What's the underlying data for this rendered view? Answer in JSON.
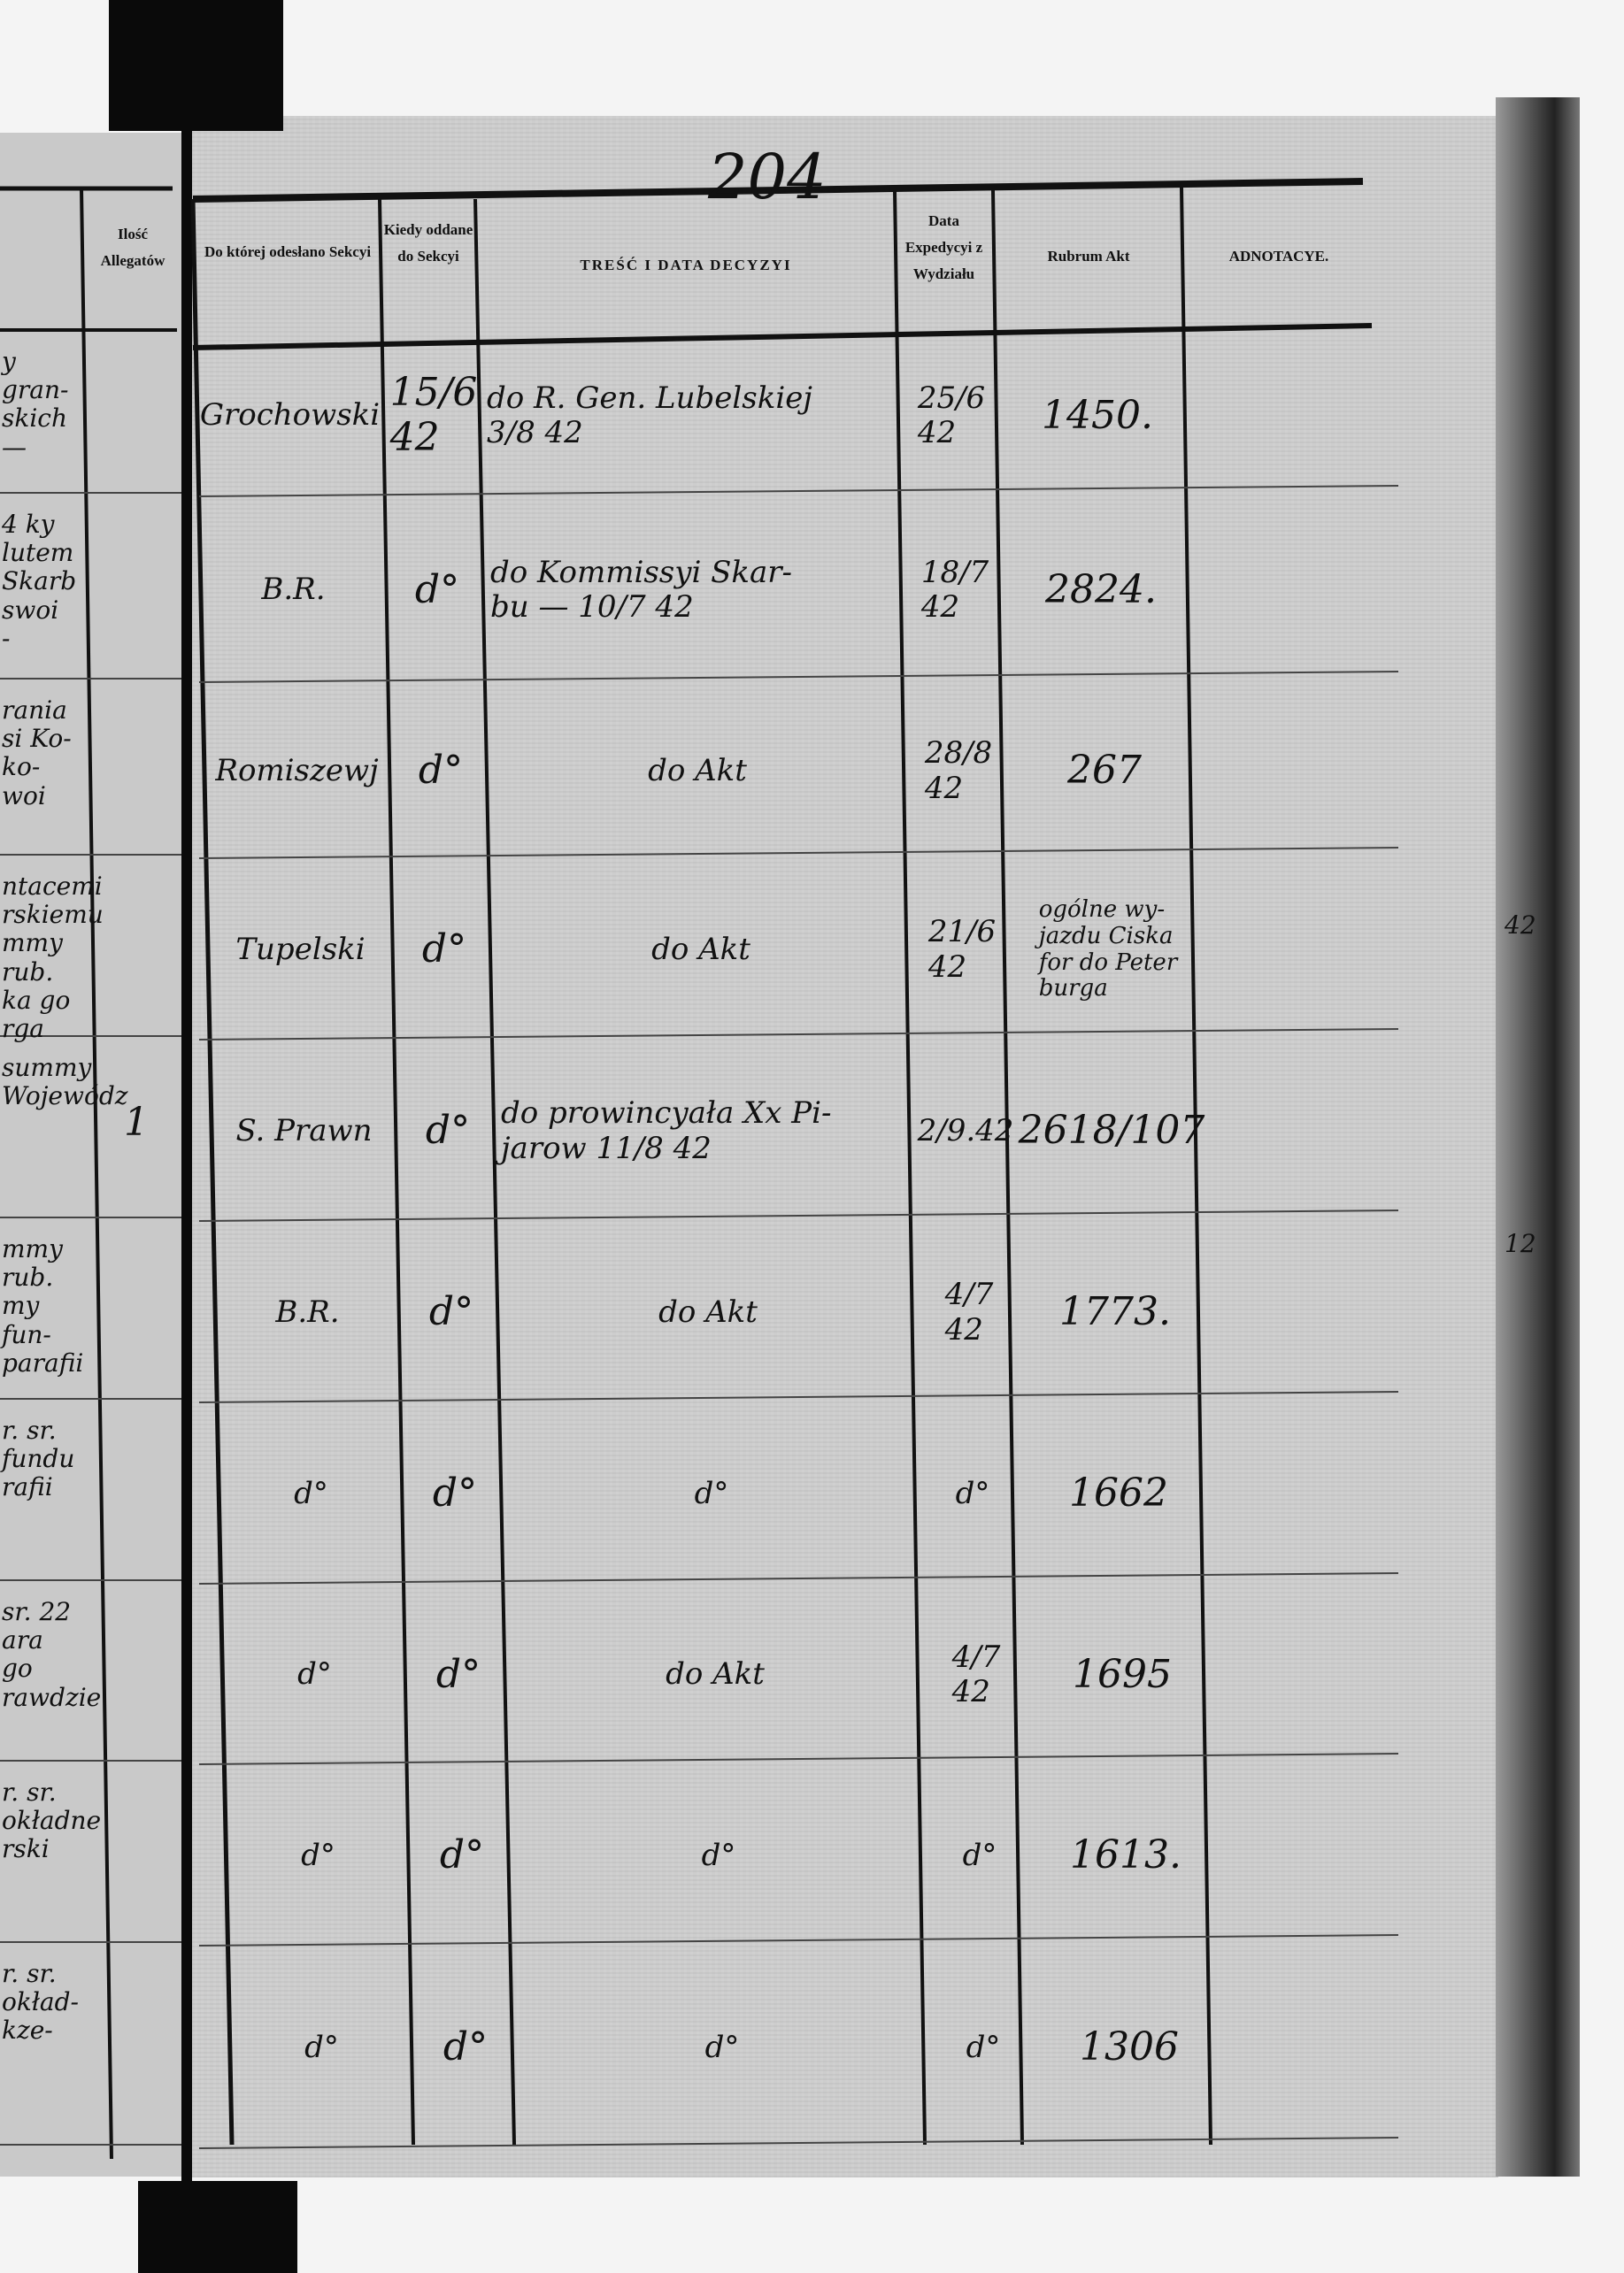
{
  "page_number": "204",
  "headers": {
    "allegaty": "Ilość Allegatów",
    "sekcja": "Do której odesłano Sekcyi",
    "kiedy": "Kiedy oddane do Sekcyi",
    "tresc": "TREŚĆ I DATA DECYZYI",
    "data_expedycyi": "Data Expedycyi z Wydziału",
    "rubrum": "Rubrum Akt",
    "adnotacye": "ADNOTACYE."
  },
  "left_page_fragments": [
    "y gran-\nskich\n—",
    "4 ky\nlutem\nSkarb\nswoi\n-",
    "rania\nsi Ko-\nko-\nwoi",
    "ntacemi\nrskiemu\nmmy rub.\nka go\nrga",
    "summy\nWojewódz",
    "mmy rub.\nmy fun-\nparafii",
    "r. sr.\nfundu\nrafii",
    "sr. 22\nara go\nrawdzie",
    "r. sr.\nokładne\nrski",
    "r. sr.\nokład-\nkze-"
  ],
  "left_page_allegaty": [
    "",
    "",
    "",
    "",
    "1",
    "",
    "",
    "",
    "",
    ""
  ],
  "rows": [
    {
      "sekcja": "Grochowski",
      "kiedy": "15/6\n42",
      "tresc": "do R. Gen. Lubelskiej\n3/8 42",
      "data": "25/6\n42",
      "rubrum": "1450.",
      "adnotacye": ""
    },
    {
      "sekcja": "B.R.",
      "kiedy": "d°",
      "tresc": "do Kommissyi Skar-\nbu —    10/7 42",
      "data": "18/7\n42",
      "rubrum": "2824.",
      "adnotacye": ""
    },
    {
      "sekcja": "Romiszewj",
      "kiedy": "d°",
      "tresc": "do Akt",
      "data": "28/8\n42",
      "rubrum": "267",
      "adnotacye": ""
    },
    {
      "sekcja": "Tupelski",
      "kiedy": "d°",
      "tresc": "do Akt",
      "data": "21/6\n42",
      "rubrum": "ogólne wy-\njazdu Ciska\nfor do Peter\nburga",
      "adnotacye": ""
    },
    {
      "sekcja": "S. Prawn",
      "kiedy": "d°",
      "tresc": "do prowincyała Xx Pi-\njarow     11/8 42",
      "data": "2/9.42",
      "rubrum": "2618/107",
      "adnotacye": ""
    },
    {
      "sekcja": "B.R.",
      "kiedy": "d°",
      "tresc": "do Akt",
      "data": "4/7\n42",
      "rubrum": "1773.",
      "adnotacye": ""
    },
    {
      "sekcja": "d°",
      "kiedy": "d°",
      "tresc": "d°",
      "data": "d°",
      "rubrum": "1662",
      "adnotacye": ""
    },
    {
      "sekcja": "d°",
      "kiedy": "d°",
      "tresc": "do Akt",
      "data": "4/7\n42",
      "rubrum": "1695",
      "adnotacye": ""
    },
    {
      "sekcja": "d°",
      "kiedy": "d°",
      "tresc": "d°",
      "data": "d°",
      "rubrum": "1613.",
      "adnotacye": ""
    },
    {
      "sekcja": "d°",
      "kiedy": "d°",
      "tresc": "d°",
      "data": "d°",
      "rubrum": "1306",
      "adnotacye": ""
    }
  ],
  "margin_notes": [
    "42",
    "12"
  ]
}
